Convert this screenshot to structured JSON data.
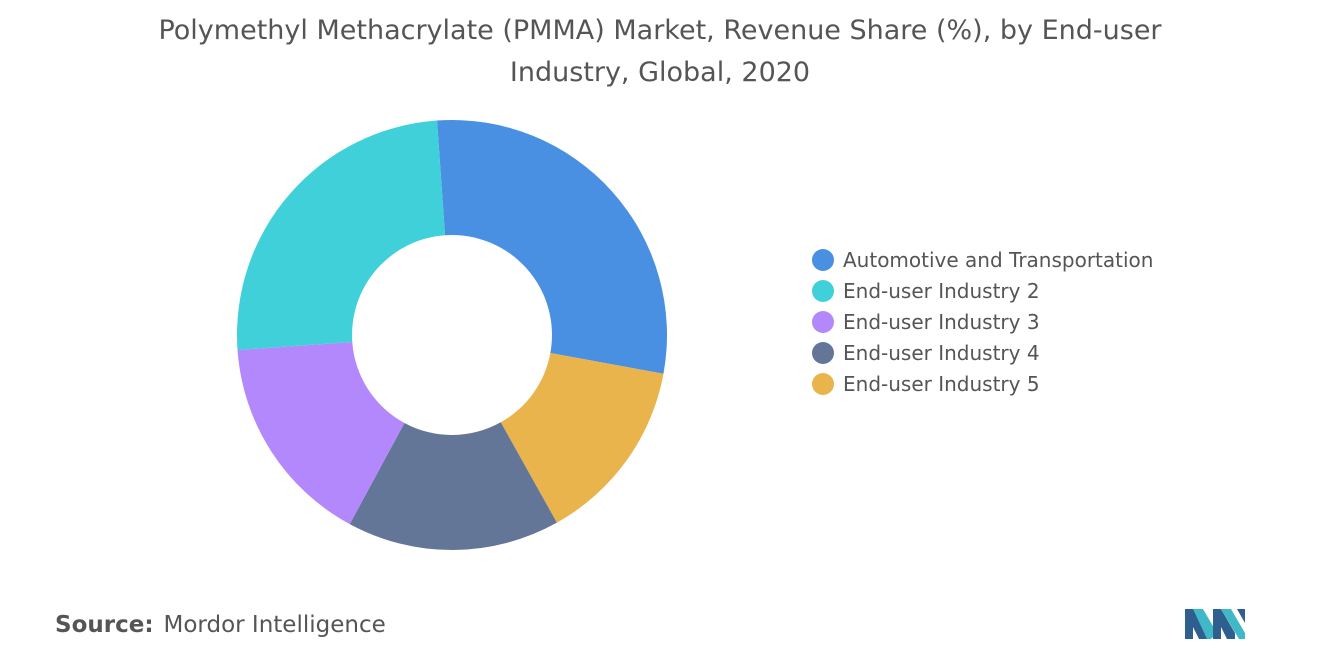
{
  "title_line1": "Polymethyl Methacrylate (PMMA) Market, Revenue Share (%), by End-user",
  "title_line2": "Industry, Global, 2020",
  "source_label": "Source:",
  "source_value": "Mordor Intelligence",
  "logo_name": "mordor-intelligence-logo",
  "chart_data": {
    "type": "pie",
    "variant": "donut",
    "title": "Polymethyl Methacrylate (PMMA) Market, Revenue Share (%), by End-user Industry, Global, 2020",
    "legend_position": "right",
    "start_angle_deg": -4,
    "inner_radius_ratio": 0.465,
    "series": [
      {
        "name": "Automotive and Transportation",
        "value": 29,
        "color": "#4a90e2"
      },
      {
        "name": "End-user Industry 5",
        "value": 14,
        "color": "#e9b44c"
      },
      {
        "name": "End-user Industry 4",
        "value": 16,
        "color": "#647698"
      },
      {
        "name": "End-user Industry 3",
        "value": 16,
        "color": "#b388fd"
      },
      {
        "name": "End-user Industry 2",
        "value": 25,
        "color": "#40d0d9"
      }
    ],
    "legend": [
      {
        "label": "Automotive and Transportation",
        "color": "#4a90e2"
      },
      {
        "label": "End-user Industry 2",
        "color": "#40d0d9"
      },
      {
        "label": "End-user Industry 3",
        "color": "#b388fd"
      },
      {
        "label": "End-user Industry 4",
        "color": "#647698"
      },
      {
        "label": "End-user Industry 5",
        "color": "#e9b44c"
      }
    ]
  }
}
